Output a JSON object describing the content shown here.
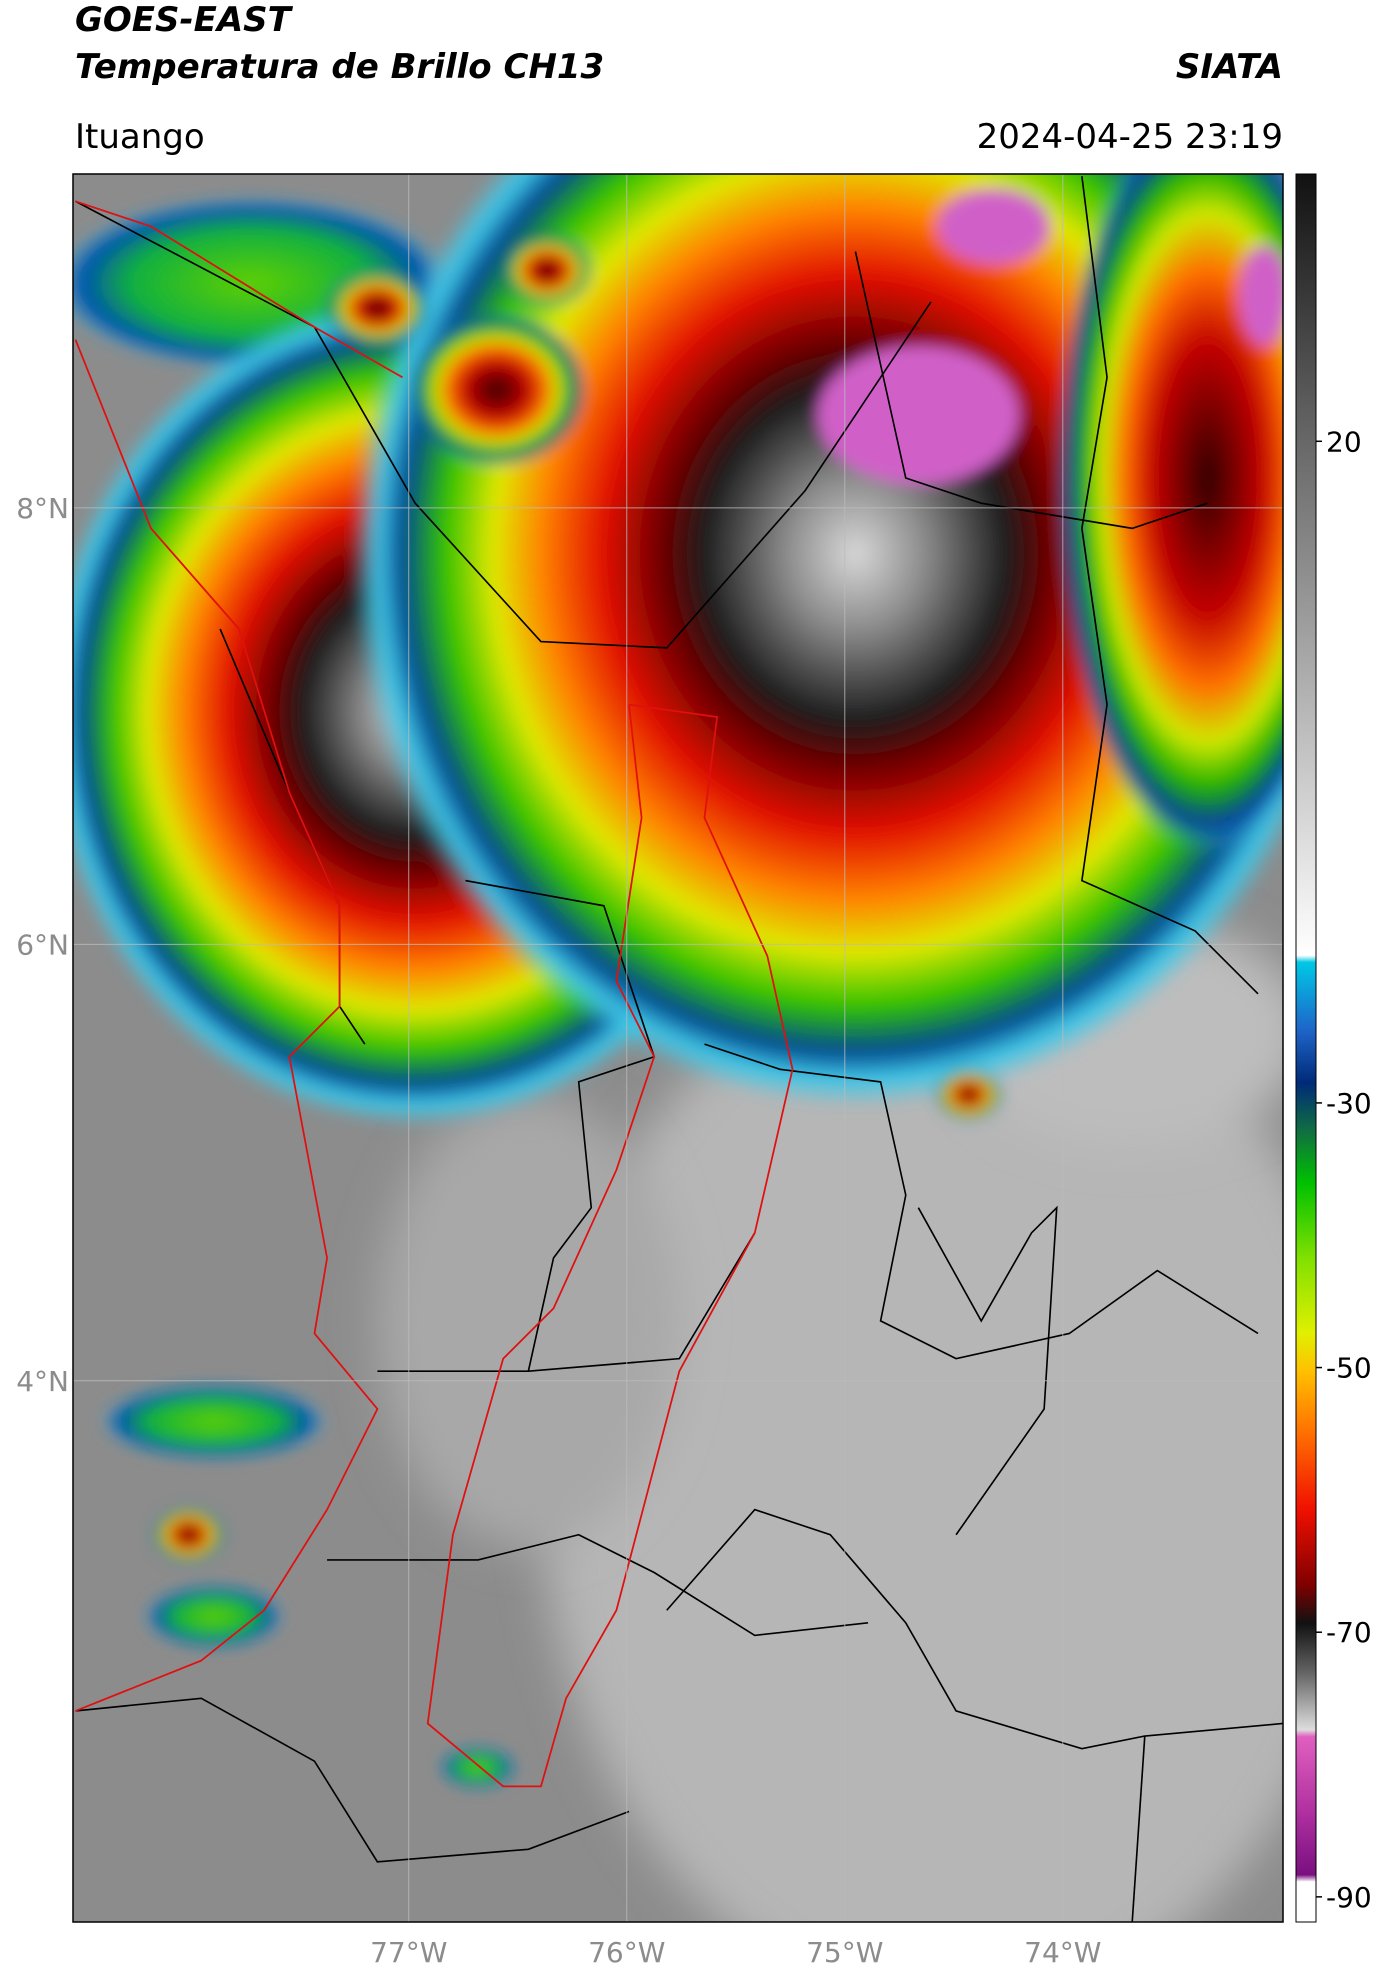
{
  "header": {
    "title": "GOES-EAST",
    "subtitle": "Temperatura de Brillo CH13",
    "brand": "SIATA",
    "location": "Ituango",
    "datetime": "2024-04-25 23:19"
  },
  "map": {
    "lat_lim": [
      1.52,
      9.53
    ],
    "lon_lim": [
      -78.54,
      -72.99
    ],
    "lat_ticks": [
      {
        "value": 8,
        "label": "8°N"
      },
      {
        "value": 6,
        "label": "6°N"
      },
      {
        "value": 4,
        "label": "4°N"
      }
    ],
    "lon_ticks": [
      {
        "value": -77,
        "label": "77°W"
      },
      {
        "value": -76,
        "label": "76°W"
      },
      {
        "value": -75,
        "label": "75°W"
      },
      {
        "value": -74,
        "label": "74°W"
      }
    ],
    "grid": true,
    "colorbar": {
      "lim": [
        -91.9,
        40.2
      ],
      "ticks": [
        20,
        -30,
        -50,
        -70,
        -90
      ]
    }
  }
}
